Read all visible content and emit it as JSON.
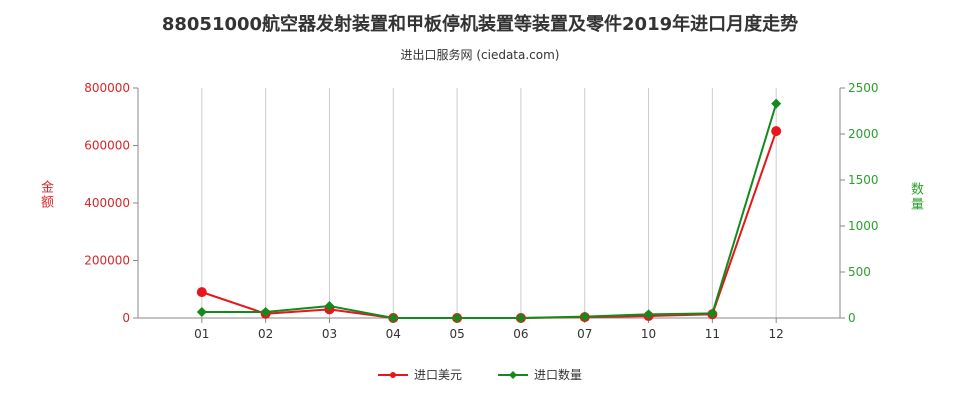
{
  "header": {
    "title": "88051000航空器发射装置和甲板停机装置等装置及零件2019年进口月度走势",
    "subtitle": "进出口服务网 (ciedata.com)"
  },
  "legend": {
    "amount": "进口美元",
    "quantity": "进口数量"
  },
  "colors": {
    "amount": "#e8161b",
    "quantity": "#138b1c",
    "left_axis": "#d62728",
    "right_axis": "#2ca02c",
    "grid": "#cccccc"
  },
  "chart_data": {
    "type": "line",
    "title": "88051000航空器发射装置和甲板停机装置等装置及零件2019年进口月度走势",
    "subtitle": "进出口服务网 (ciedata.com)",
    "categories": [
      "01",
      "02",
      "03",
      "04",
      "05",
      "06",
      "07",
      "10",
      "11",
      "12"
    ],
    "series": [
      {
        "name": "进口美元",
        "axis": "left",
        "values": [
          90000,
          15000,
          30000,
          0,
          0,
          0,
          3000,
          7000,
          13000,
          650000
        ]
      },
      {
        "name": "进口数量",
        "axis": "right",
        "values": [
          65,
          65,
          130,
          0,
          0,
          0,
          15,
          40,
          50,
          2330
        ]
      }
    ],
    "ylabel_left": "金额",
    "ylabel_right": "数量",
    "ylim_left": [
      0,
      800000
    ],
    "ylim_right": [
      0,
      2500
    ],
    "yticks_left": [
      "0",
      "200000",
      "400000",
      "600000",
      "800000"
    ],
    "yticks_right": [
      "0",
      "500",
      "1000",
      "1500",
      "2000",
      "2500"
    ],
    "grid": true,
    "legend_position": "bottom-center"
  }
}
